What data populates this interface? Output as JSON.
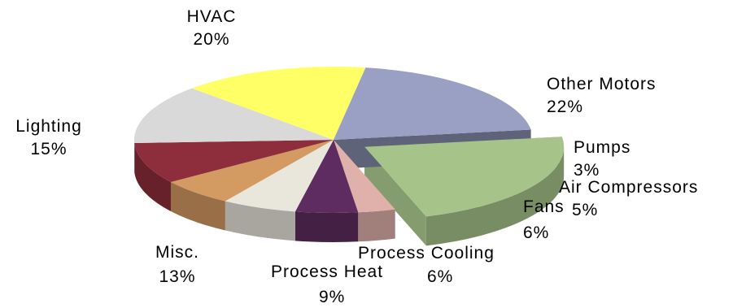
{
  "chart_data": {
    "type": "pie",
    "title": "",
    "three_d": true,
    "legend": "none",
    "slices": [
      {
        "label": "Other Motors",
        "value": 22,
        "value_label": "22%",
        "color": "#a6c48a",
        "exploded": true
      },
      {
        "label": "Pumps",
        "value": 3,
        "value_label": "3%",
        "color": "#e0b0aa"
      },
      {
        "label": "Air Compressors",
        "value": 5,
        "value_label": "5%",
        "color": "#5e2c60"
      },
      {
        "label": "Fans",
        "value": 6,
        "value_label": "6%",
        "color": "#e9e6dc"
      },
      {
        "label": "Process Cooling",
        "value": 6,
        "value_label": "6%",
        "color": "#d39a62"
      },
      {
        "label": "Process Heat",
        "value": 9,
        "value_label": "9%",
        "color": "#8e2e3c"
      },
      {
        "label": "Misc.",
        "value": 13,
        "value_label": "13%",
        "color": "#d9d9d9"
      },
      {
        "label": "Lighting",
        "value": 15,
        "value_label": "15%",
        "color": "#ffff66"
      },
      {
        "label": "HVAC",
        "value": 20,
        "value_label": "20%",
        "color": "#9aa0c4"
      }
    ]
  }
}
